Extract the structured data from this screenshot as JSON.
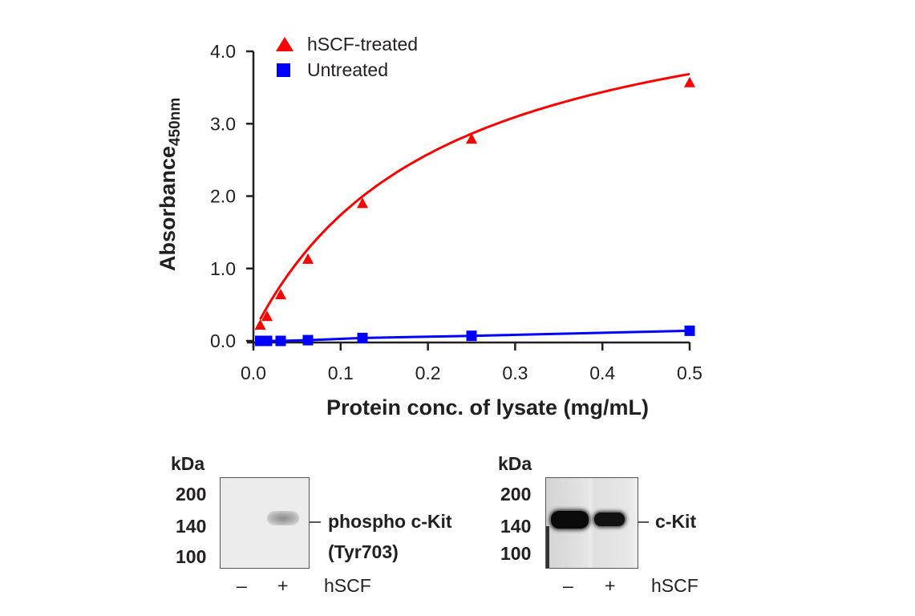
{
  "chart_data": {
    "type": "line",
    "title": "",
    "xlabel": "Protein conc. of lysate (mg/mL)",
    "ylabel": "Absorbance",
    "ylabel_subscript": "450nm",
    "xlim": [
      0,
      0.5
    ],
    "ylim": [
      0,
      4.0
    ],
    "x_ticks": [
      0.0,
      0.1,
      0.2,
      0.3,
      0.4,
      0.5
    ],
    "x_tick_labels": [
      "0.0",
      "0.1",
      "0.2",
      "0.3",
      "0.4",
      "0.5"
    ],
    "y_ticks": [
      0,
      1,
      2,
      3,
      4
    ],
    "y_tick_labels": [
      "0.0",
      "1.0",
      "2.0",
      "3.0",
      "4.0"
    ],
    "grid": false,
    "legend_position": "top-left",
    "series": [
      {
        "name": "hSCF-treated",
        "marker": "triangle",
        "color": "#ff0000",
        "x": [
          0.0078,
          0.0156,
          0.03125,
          0.0625,
          0.125,
          0.25,
          0.5
        ],
        "values": [
          0.21,
          0.33,
          0.63,
          1.12,
          1.89,
          2.78,
          3.56
        ]
      },
      {
        "name": "Untreated",
        "marker": "square",
        "color": "#0000ff",
        "x": [
          0.0078,
          0.0156,
          0.03125,
          0.0625,
          0.125,
          0.25,
          0.5
        ],
        "values": [
          0.0,
          0.0,
          0.0,
          0.01,
          0.04,
          0.07,
          0.14
        ]
      }
    ]
  },
  "blots": [
    {
      "kda_label": "kDa",
      "markers": [
        "200",
        "140",
        "100"
      ],
      "band_label_line1": "phospho c-Kit",
      "band_label_line2": "(Tyr703)",
      "lanes": [
        "–",
        "+"
      ],
      "treatment_label": "hSCF"
    },
    {
      "kda_label": "kDa",
      "markers": [
        "200",
        "140",
        "100"
      ],
      "band_label_line1": "c-Kit",
      "band_label_line2": "",
      "lanes": [
        "–",
        "+"
      ],
      "treatment_label": "hSCF"
    }
  ]
}
